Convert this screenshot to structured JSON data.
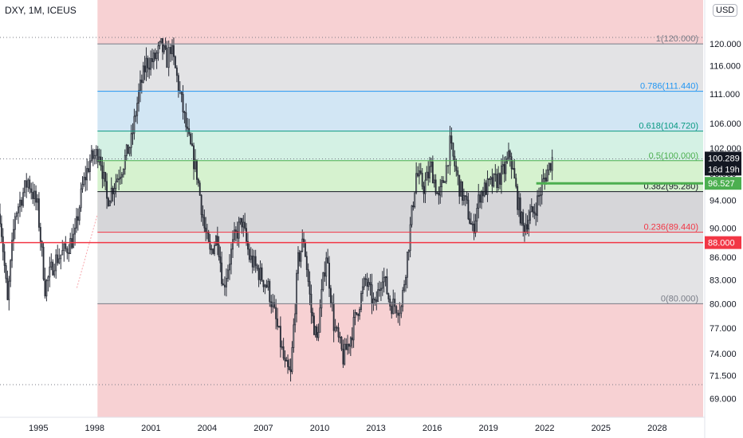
{
  "header": {
    "symbol_line": "DXY, 1M, ICEUS",
    "currency": "USD"
  },
  "colors": {
    "bull_candle": "#2a2e39",
    "bear_candle": "#2a2e39",
    "fib_zone_outer": "#f7d1d3",
    "fib_zone_grey": "#e3e3e5",
    "fib_zone_blue": "#d2e6f4",
    "fib_zone_teal": "#d4f1e4",
    "fib_zone_green": "#d6f2cf",
    "support_line": "#f23645",
    "current_level_line": "#4caf50"
  },
  "chart_data": {
    "type": "candlestick",
    "symbol": "DXY",
    "timeframe": "1M",
    "exchange": "ICEUS",
    "x_axis": {
      "ticks": [
        "1995",
        "1998",
        "2001",
        "2004",
        "2007",
        "2010",
        "2013",
        "2016",
        "2019",
        "2022",
        "2025",
        "2028"
      ],
      "range": [
        1993.0,
        2030.5
      ]
    },
    "y_axis": {
      "scale": "log",
      "ticks": [
        "120.000",
        "116.000",
        "111.000",
        "106.000",
        "102.000",
        "98.000",
        "94.000",
        "90.000",
        "86.000",
        "83.000",
        "80.000",
        "77.000",
        "74.000",
        "71.500",
        "69.000"
      ],
      "range": [
        67.0,
        128.5
      ]
    },
    "price_series": [
      {
        "t": 1993.0,
        "v": 92.0
      },
      {
        "t": 1993.4,
        "v": 80.0
      },
      {
        "t": 1993.8,
        "v": 92.0
      },
      {
        "t": 1994.5,
        "v": 97.0
      },
      {
        "t": 1995.0,
        "v": 93.0
      },
      {
        "t": 1995.4,
        "v": 82.0
      },
      {
        "t": 1995.9,
        "v": 85.5
      },
      {
        "t": 1996.5,
        "v": 87.0
      },
      {
        "t": 1997.0,
        "v": 89.0
      },
      {
        "t": 1997.4,
        "v": 96.0
      },
      {
        "t": 1997.8,
        "v": 100.0
      },
      {
        "t": 1998.3,
        "v": 101.5
      },
      {
        "t": 1998.7,
        "v": 94.0
      },
      {
        "t": 1999.5,
        "v": 99.0
      },
      {
        "t": 2000.0,
        "v": 103.0
      },
      {
        "t": 2000.4,
        "v": 111.0
      },
      {
        "t": 2000.8,
        "v": 116.5
      },
      {
        "t": 2001.2,
        "v": 117.0
      },
      {
        "t": 2001.6,
        "v": 119.5
      },
      {
        "t": 2001.9,
        "v": 117.0
      },
      {
        "t": 2002.1,
        "v": 119.5
      },
      {
        "t": 2002.6,
        "v": 111.0
      },
      {
        "t": 2003.0,
        "v": 104.0
      },
      {
        "t": 2003.5,
        "v": 98.0
      },
      {
        "t": 2003.9,
        "v": 90.0
      },
      {
        "t": 2004.2,
        "v": 86.5
      },
      {
        "t": 2004.6,
        "v": 89.0
      },
      {
        "t": 2004.9,
        "v": 82.0
      },
      {
        "t": 2005.5,
        "v": 88.5
      },
      {
        "t": 2005.9,
        "v": 91.0
      },
      {
        "t": 2006.3,
        "v": 86.0
      },
      {
        "t": 2006.8,
        "v": 84.0
      },
      {
        "t": 2007.3,
        "v": 82.0
      },
      {
        "t": 2007.8,
        "v": 77.0
      },
      {
        "t": 2008.2,
        "v": 72.5
      },
      {
        "t": 2008.5,
        "v": 71.5
      },
      {
        "t": 2008.9,
        "v": 85.5
      },
      {
        "t": 2009.2,
        "v": 88.5
      },
      {
        "t": 2009.6,
        "v": 79.0
      },
      {
        "t": 2009.9,
        "v": 75.5
      },
      {
        "t": 2010.4,
        "v": 86.5
      },
      {
        "t": 2010.8,
        "v": 77.5
      },
      {
        "t": 2011.3,
        "v": 73.5
      },
      {
        "t": 2011.7,
        "v": 76.0
      },
      {
        "t": 2012.1,
        "v": 79.5
      },
      {
        "t": 2012.5,
        "v": 83.0
      },
      {
        "t": 2013.0,
        "v": 79.5
      },
      {
        "t": 2013.4,
        "v": 84.0
      },
      {
        "t": 2013.8,
        "v": 80.0
      },
      {
        "t": 2014.4,
        "v": 79.5
      },
      {
        "t": 2014.8,
        "v": 88.0
      },
      {
        "t": 2015.2,
        "v": 98.0
      },
      {
        "t": 2015.6,
        "v": 96.0
      },
      {
        "t": 2016.0,
        "v": 99.0
      },
      {
        "t": 2016.4,
        "v": 94.0
      },
      {
        "t": 2016.8,
        "v": 99.0
      },
      {
        "t": 2017.0,
        "v": 102.5
      },
      {
        "t": 2017.5,
        "v": 96.0
      },
      {
        "t": 2017.9,
        "v": 93.0
      },
      {
        "t": 2018.2,
        "v": 89.5
      },
      {
        "t": 2018.6,
        "v": 95.0
      },
      {
        "t": 2019.0,
        "v": 96.0
      },
      {
        "t": 2019.5,
        "v": 97.0
      },
      {
        "t": 2019.9,
        "v": 98.5
      },
      {
        "t": 2020.2,
        "v": 101.0
      },
      {
        "t": 2020.6,
        "v": 94.0
      },
      {
        "t": 2020.9,
        "v": 90.0
      },
      {
        "t": 2021.2,
        "v": 91.5
      },
      {
        "t": 2021.5,
        "v": 92.5
      },
      {
        "t": 2021.9,
        "v": 96.0
      },
      {
        "t": 2022.2,
        "v": 98.5
      },
      {
        "t": 2022.45,
        "v": 100.289
      }
    ],
    "fib_retracement": {
      "time_start": 1998.2,
      "price_high": 120.0,
      "price_low": 80.0,
      "levels": [
        {
          "ratio": 1,
          "price": 120.0,
          "label": "1(120.000)",
          "color": "#787b86"
        },
        {
          "ratio": 0.786,
          "price": 111.44,
          "label": "0.786(111.440)",
          "color": "#2196f3"
        },
        {
          "ratio": 0.618,
          "price": 104.72,
          "label": "0.618(104.720)",
          "color": "#089981"
        },
        {
          "ratio": 0.5,
          "price": 100.0,
          "label": "0.5(100.000)",
          "color": "#4caf50"
        },
        {
          "ratio": 0.382,
          "price": 95.28,
          "label": "0.382(95.280)",
          "color": "#131722"
        },
        {
          "ratio": 0.236,
          "price": 89.44,
          "label": "0.236(89.440)",
          "color": "#f23645"
        },
        {
          "ratio": 0,
          "price": 80.0,
          "label": "0(80.000)",
          "color": "#787b86"
        }
      ]
    },
    "horizontal_lines": [
      {
        "price": 88.0,
        "label": "88.000",
        "color": "#f23645",
        "from": "full"
      },
      {
        "price": 96.527,
        "label": "96.527",
        "color": "#4caf50",
        "from": 2021.6
      }
    ],
    "last_price": {
      "price": 100.289,
      "label": "100.289",
      "countdown": "16d 19h"
    },
    "dotted_reference_prices": [
      121.2,
      100.289,
      70.5
    ]
  }
}
